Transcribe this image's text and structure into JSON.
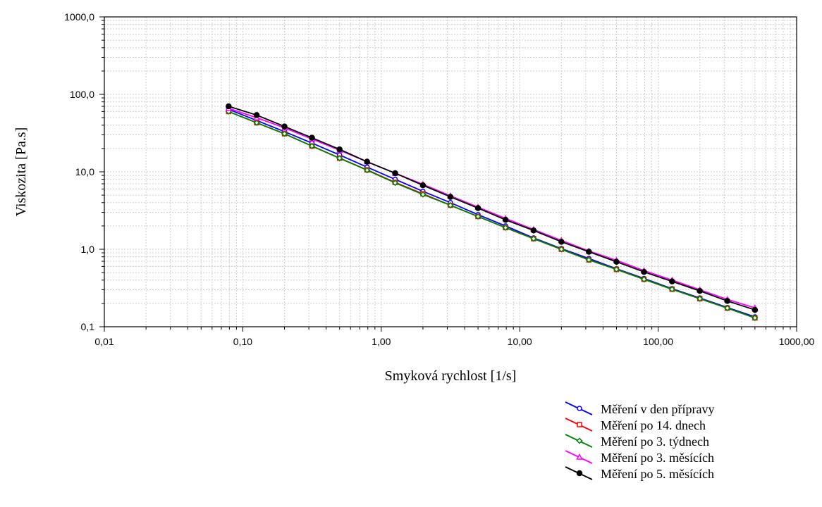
{
  "chart_data": {
    "type": "line",
    "title": "",
    "xlabel": "Smyková rychlost [1/s]",
    "ylabel": "Viskozita [Pa.s]",
    "xscale": "log",
    "yscale": "log",
    "xlim": [
      0.01,
      1000
    ],
    "ylim": [
      0.1,
      1000
    ],
    "grid": true,
    "legend_position": "bottom-right",
    "x_ticks": [
      {
        "value": 0.01,
        "label": "0,01"
      },
      {
        "value": 0.1,
        "label": "0,10"
      },
      {
        "value": 1,
        "label": "1,00"
      },
      {
        "value": 10,
        "label": "10,00"
      },
      {
        "value": 100,
        "label": "100,00"
      },
      {
        "value": 1000,
        "label": "1000,00"
      }
    ],
    "y_ticks": [
      {
        "value": 0.1,
        "label": "0,1"
      },
      {
        "value": 1,
        "label": "1,0"
      },
      {
        "value": 10,
        "label": "10,0"
      },
      {
        "value": 100,
        "label": "100,0"
      },
      {
        "value": 1000,
        "label": "1000,0"
      }
    ],
    "x": [
      0.079,
      0.126,
      0.2,
      0.316,
      0.5,
      0.79,
      1.26,
      2.0,
      3.16,
      5.0,
      7.9,
      12.6,
      20.0,
      31.6,
      50.0,
      79.0,
      126.0,
      200.0,
      316.0,
      500.0
    ],
    "series": [
      {
        "name": "Měření v den přípravy",
        "color": "#0000ff",
        "marker": "circle",
        "values": [
          64,
          46,
          33,
          23.5,
          16.5,
          11.5,
          8.0,
          5.6,
          4.0,
          2.8,
          2.0,
          1.4,
          1.02,
          0.76,
          0.56,
          0.42,
          0.31,
          0.235,
          0.177,
          0.134
        ]
      },
      {
        "name": "Měření po 14. dnech",
        "color": "#ff0000",
        "marker": "square",
        "values": [
          60,
          43,
          31,
          21.5,
          15,
          10.6,
          7.3,
          5.2,
          3.7,
          2.65,
          1.9,
          1.37,
          1.0,
          0.73,
          0.55,
          0.41,
          0.305,
          0.23,
          0.174,
          0.13
        ]
      },
      {
        "name": "Měření po 3. týdnech",
        "color": "#008000",
        "marker": "diamond",
        "values": [
          60,
          43,
          31,
          21.5,
          15,
          10.5,
          7.2,
          5.1,
          3.7,
          2.65,
          1.9,
          1.37,
          1.0,
          0.73,
          0.55,
          0.41,
          0.305,
          0.23,
          0.174,
          0.13
        ]
      },
      {
        "name": "Měření po 3. měsících",
        "color": "#ff00ff",
        "marker": "triangle",
        "values": [
          66,
          50,
          37,
          26.5,
          19,
          13.5,
          9.6,
          6.9,
          4.9,
          3.5,
          2.5,
          1.8,
          1.3,
          0.95,
          0.72,
          0.53,
          0.4,
          0.3,
          0.225,
          0.175
        ]
      },
      {
        "name": "Měření po 5. měsících",
        "color": "#000000",
        "marker": "filled-circle",
        "values": [
          70,
          54,
          38.5,
          27.5,
          19.5,
          13.5,
          9.6,
          6.7,
          4.75,
          3.4,
          2.4,
          1.75,
          1.25,
          0.93,
          0.69,
          0.51,
          0.385,
          0.29,
          0.215,
          0.165
        ]
      }
    ]
  }
}
